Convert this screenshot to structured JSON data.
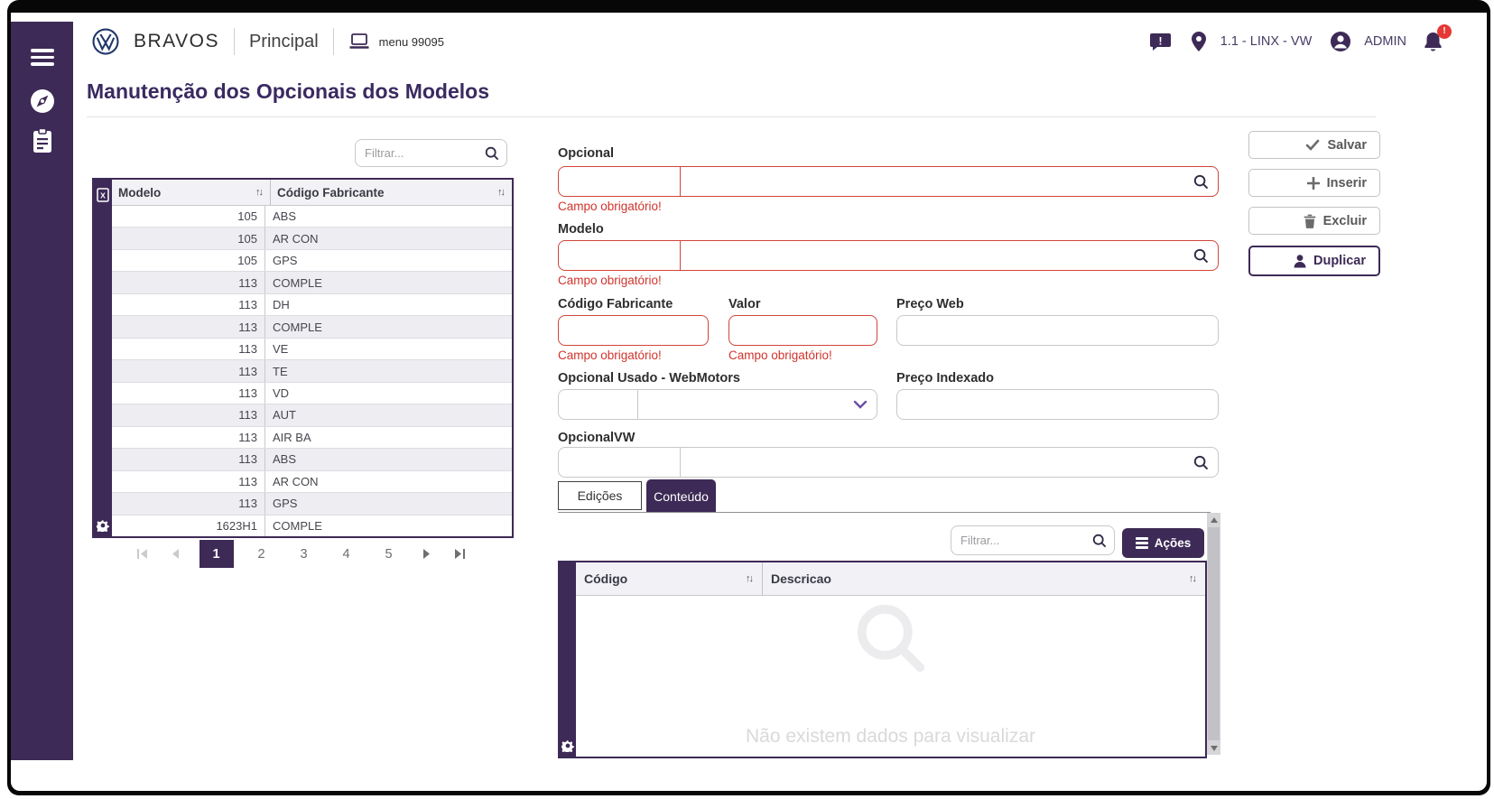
{
  "header": {
    "brand": "BRAVOS",
    "section": "Principal",
    "menu_label": "menu 99095",
    "environment": "1.1 - LINX - VW",
    "user": "ADMIN",
    "notification_badge": "!"
  },
  "page": {
    "title": "Manutenção dos Opcionais dos Modelos"
  },
  "left_panel": {
    "filter_placeholder": "Filtrar...",
    "table": {
      "columns": [
        "Modelo",
        "Código Fabricante"
      ],
      "rows": [
        [
          "105",
          "ABS"
        ],
        [
          "105",
          "AR CON"
        ],
        [
          "105",
          "GPS"
        ],
        [
          "113",
          "COMPLE"
        ],
        [
          "113",
          "DH"
        ],
        [
          "113",
          "COMPLE"
        ],
        [
          "113",
          "VE"
        ],
        [
          "113",
          "TE"
        ],
        [
          "113",
          "VD"
        ],
        [
          "113",
          "AUT"
        ],
        [
          "113",
          "AIR BA"
        ],
        [
          "113",
          "ABS"
        ],
        [
          "113",
          "AR CON"
        ],
        [
          "113",
          "GPS"
        ],
        [
          "1623H1",
          "COMPLE"
        ]
      ]
    },
    "pagination": {
      "pages": [
        "1",
        "2",
        "3",
        "4",
        "5"
      ],
      "active": "1"
    }
  },
  "form": {
    "required_error": "Campo obrigatório!",
    "opcional_label": "Opcional",
    "modelo_label": "Modelo",
    "codigo_fabricante_label": "Código Fabricante",
    "valor_label": "Valor",
    "preco_web_label": "Preço Web",
    "opcional_usado_label": "Opcional Usado - WebMotors",
    "preco_indexado_label": "Preço Indexado",
    "opcional_vw_label": "OpcionalVW"
  },
  "tabs": [
    {
      "label": "Edições",
      "active": false
    },
    {
      "label": "Conteúdo",
      "active": true
    }
  ],
  "content_panel": {
    "filter_placeholder": "Filtrar...",
    "actions_label": "Ações",
    "table": {
      "columns": [
        "Código",
        "Descricao"
      ],
      "empty_message": "Não existem dados para visualizar"
    }
  },
  "action_buttons": [
    {
      "label": "Salvar",
      "icon": "check-icon"
    },
    {
      "label": "Inserir",
      "icon": "plus-icon"
    },
    {
      "label": "Excluir",
      "icon": "trash-icon"
    },
    {
      "label": "Duplicar",
      "icon": "person-icon",
      "highlighted": true
    }
  ],
  "icons": {
    "sidebar": [
      "hamburger-icon",
      "compass-icon",
      "clipboard-icon"
    ],
    "header": [
      "vw-logo",
      "laptop-icon",
      "chat-alert-icon",
      "location-pin-icon",
      "user-icon",
      "bell-icon"
    ],
    "tables": [
      "excel-export-icon",
      "gear-icon",
      "sort-icon",
      "search-icon"
    ]
  },
  "colors": {
    "brand_purple": "#3d2a56",
    "title_purple": "#3a2a60",
    "error_red": "#d0342c",
    "badge_red": "#e53935",
    "header_row_bg": "#f1f1f6",
    "row_alt_bg": "#ededf2",
    "empty_text": "#d9d9db"
  }
}
